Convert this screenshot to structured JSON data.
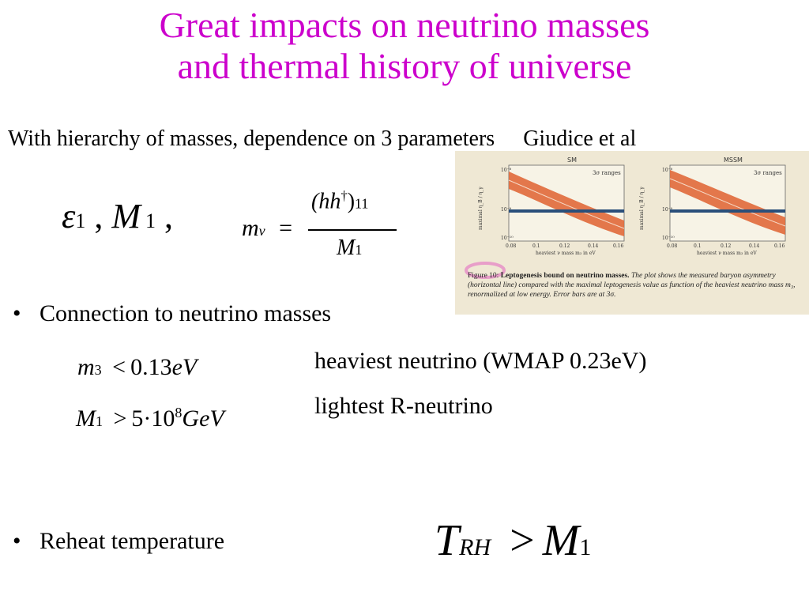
{
  "title": {
    "line1": "Great impacts on neutrino masses",
    "line2": "and thermal history of universe"
  },
  "subheading": {
    "text": "With hierarchy of masses, dependence on 3 parameters",
    "citation": "Giudice et al"
  },
  "params_formula": {
    "eps": "ε",
    "eps_sub": "1",
    "sep1": ",",
    "M": "M",
    "M_sub": "1",
    "sep2": ","
  },
  "mnu_formula": {
    "lhs": "m",
    "lhs_sub": "ν",
    "eq": "=",
    "num": "(hh",
    "num_sup": "†",
    "num_close": ")",
    "num_sub": "11",
    "den": "M",
    "den_sub": "1"
  },
  "bullets": [
    {
      "text": "Connection to neutrino masses"
    },
    {
      "text": "Reheat temperature"
    }
  ],
  "bounds": [
    {
      "var": "m",
      "sub": "3",
      "rel": "<",
      "value": "0.13",
      "unit": "eV",
      "note": "heaviest neutrino (WMAP 0.23eV)"
    },
    {
      "var": "M",
      "sub": "1",
      "rel": ">",
      "coef": "5·10",
      "exp": "8",
      "unit": "GeV",
      "note": "lightest R-neutrino"
    }
  ],
  "reheat_formula": {
    "T": "T",
    "T_sub": "RH",
    "rel": ">",
    "M": "M",
    "M_sub": "1"
  },
  "figure": {
    "panels": [
      {
        "title": "SM",
        "label": "3σ ranges",
        "ylabel": "maximal η_B / η_γ",
        "xlabel": "heaviest ν mass m₃ in eV",
        "yticks": [
          "10⁻⁸",
          "10⁻⁹",
          "10⁻¹⁰"
        ],
        "xticks": [
          "0.08",
          "0.1",
          "0.12",
          "0.14",
          "0.16"
        ]
      },
      {
        "title": "MSSM",
        "label": "3σ ranges",
        "ylabel": "maximal η_B / η_γ",
        "xlabel": "heaviest ν mass m₃ in eV",
        "yticks": [
          "10⁻⁸",
          "10⁻⁹",
          "10⁻¹⁰"
        ],
        "xticks": [
          "0.08",
          "0.1",
          "0.12",
          "0.14",
          "0.16"
        ]
      }
    ],
    "caption_label": "Figure 10:",
    "caption_bold": "Leptogenesis bound on neutrino masses.",
    "caption_rest": "The plot shows the measured baryon asymmetry (horizontal line) compared with the maximal leptogenesis value as function of the heaviest neutrino mass m₃, renormalized at low energy. Error bars are at 3σ.",
    "colors": {
      "band": "#e0693a",
      "line": "#2a4f7a",
      "paper": "#efe8d4"
    }
  }
}
